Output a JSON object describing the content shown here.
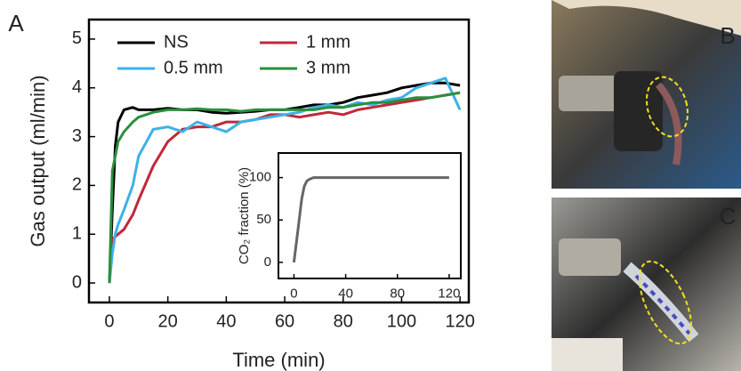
{
  "panel_labels": [
    "A",
    "B",
    "C"
  ],
  "chart_data": [
    {
      "type": "line",
      "x_label": "Time (min)",
      "y_label": "Gas output (ml/min)",
      "xlim": [
        -7,
        123
      ],
      "ylim": [
        -0.4,
        5.4
      ],
      "xticks": [
        0,
        20,
        40,
        60,
        80,
        100,
        120
      ],
      "yticks": [
        0,
        1,
        2,
        3,
        4,
        5
      ],
      "x": [
        0,
        1,
        2,
        3,
        5,
        8,
        10,
        15,
        20,
        25,
        30,
        35,
        40,
        45,
        50,
        55,
        60,
        65,
        70,
        75,
        80,
        85,
        90,
        95,
        100,
        105,
        110,
        115,
        120
      ],
      "series": [
        {
          "name": "NS",
          "color": "#000000",
          "values": [
            0,
            1.5,
            2.8,
            3.3,
            3.55,
            3.6,
            3.55,
            3.55,
            3.58,
            3.55,
            3.55,
            3.5,
            3.48,
            3.5,
            3.52,
            3.55,
            3.55,
            3.6,
            3.65,
            3.65,
            3.7,
            3.8,
            3.85,
            3.9,
            4.0,
            4.05,
            4.1,
            4.1,
            4.05
          ]
        },
        {
          "name": "1 mm",
          "color": "#c0283c",
          "values": [
            0,
            0.9,
            0.95,
            1.0,
            1.1,
            1.4,
            1.7,
            2.4,
            2.9,
            3.15,
            3.2,
            3.2,
            3.3,
            3.3,
            3.35,
            3.45,
            3.45,
            3.4,
            3.45,
            3.5,
            3.45,
            3.55,
            3.6,
            3.65,
            3.7,
            3.75,
            3.8,
            3.85,
            3.9
          ]
        },
        {
          "name": "0.5 mm",
          "color": "#3db1e8",
          "values": [
            0,
            0.6,
            1.0,
            1.2,
            1.5,
            2.0,
            2.6,
            3.15,
            3.2,
            3.1,
            3.3,
            3.2,
            3.1,
            3.3,
            3.35,
            3.4,
            3.45,
            3.5,
            3.6,
            3.65,
            3.6,
            3.7,
            3.65,
            3.75,
            3.8,
            4.0,
            4.1,
            4.2,
            3.55
          ]
        },
        {
          "name": "3 mm",
          "color": "#2a8f3e",
          "values": [
            0,
            2.3,
            2.6,
            2.9,
            3.1,
            3.3,
            3.4,
            3.5,
            3.55,
            3.55,
            3.57,
            3.55,
            3.55,
            3.52,
            3.55,
            3.55,
            3.55,
            3.55,
            3.55,
            3.6,
            3.6,
            3.65,
            3.7,
            3.7,
            3.75,
            3.8,
            3.8,
            3.85,
            3.9
          ]
        }
      ]
    },
    {
      "type": "line",
      "y_label": "CO₂ fraction (%)",
      "xlim": [
        -12,
        129
      ],
      "ylim": [
        -19,
        129
      ],
      "xticks": [
        0,
        40,
        80,
        120
      ],
      "yticks": [
        0,
        50,
        100
      ],
      "x": [
        0,
        2,
        4,
        6,
        8,
        10,
        12,
        15,
        20,
        40,
        80,
        120
      ],
      "series": [
        {
          "color": "#666666",
          "values": [
            0,
            25,
            50,
            75,
            90,
            96,
            98,
            100,
            100,
            100,
            100,
            100
          ]
        }
      ]
    }
  ]
}
